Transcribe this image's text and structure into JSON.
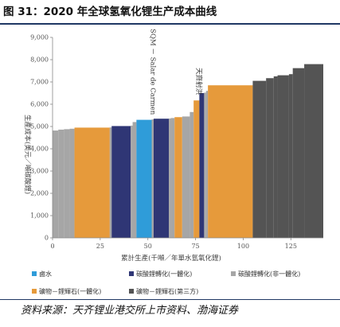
{
  "header": {
    "title": "图 31：2020 年全球氢氧化锂生产成本曲线"
  },
  "footer": {
    "source": "资料来源：天齐锂业港交所上市资料、渤海证券"
  },
  "colors": {
    "grey": "#a6a6a6",
    "orange": "#e69a3b",
    "navy": "#2f3675",
    "cyan": "#2f9cd9",
    "dark": "#545454",
    "title_rule": "#1f3864"
  },
  "chart_data": {
    "type": "bar",
    "subtype": "cost-curve",
    "xlabel": "累計生產(千噸／年單水氫氧化鋰)",
    "ylabel": "生產成本(美元／噸碳酸鋰)",
    "xlim": [
      0,
      142
    ],
    "ylim": [
      0,
      9000
    ],
    "x_ticks": [
      0,
      25,
      50,
      75,
      100,
      125
    ],
    "y_ticks": [
      0,
      1000,
      2000,
      3000,
      4000,
      5000,
      6000,
      7000,
      8000,
      9000
    ],
    "y_tick_labels": [
      "0",
      "1,000",
      "2,000",
      "3,000",
      "4,000",
      "5,000",
      "6,000",
      "7,000",
      "8,000",
      "9,000"
    ],
    "grid": false,
    "legend_position": "bottom",
    "legend": [
      {
        "label": "鹵水",
        "color": "#2f9cd9"
      },
      {
        "label": "碳酸鋰轉化(一體化)",
        "color": "#2f3675"
      },
      {
        "label": "碳酸鋰轉化(非一體化)",
        "color": "#a6a6a6"
      },
      {
        "label": "礦物－鋰輝石(一體化)",
        "color": "#e69a3b"
      },
      {
        "label": "礦物－鋰輝石(第三方)",
        "color": "#545454"
      }
    ],
    "annotations": [
      {
        "text": "SQM － Salar de Carmen",
        "x": 51.5,
        "y": 5450
      },
      {
        "text": "天齊射洪",
        "x": 75.5,
        "y": 6350
      }
    ],
    "segments": [
      {
        "x0": 0,
        "x1": 3,
        "cost": 4820,
        "color": "grey"
      },
      {
        "x0": 3,
        "x1": 6,
        "cost": 4860,
        "color": "grey"
      },
      {
        "x0": 6,
        "x1": 9,
        "cost": 4880,
        "color": "grey"
      },
      {
        "x0": 9,
        "x1": 11.5,
        "cost": 4900,
        "color": "grey"
      },
      {
        "x0": 11.5,
        "x1": 30,
        "cost": 4950,
        "color": "orange"
      },
      {
        "x0": 30,
        "x1": 31,
        "cost": 4960,
        "color": "grey"
      },
      {
        "x0": 31,
        "x1": 41,
        "cost": 5020,
        "color": "navy"
      },
      {
        "x0": 41,
        "x1": 42,
        "cost": 5040,
        "color": "grey"
      },
      {
        "x0": 42,
        "x1": 44,
        "cost": 5200,
        "color": "grey"
      },
      {
        "x0": 44,
        "x1": 52,
        "cost": 5300,
        "color": "cyan"
      },
      {
        "x0": 52,
        "x1": 53,
        "cost": 5320,
        "color": "grey"
      },
      {
        "x0": 53,
        "x1": 61,
        "cost": 5350,
        "color": "navy"
      },
      {
        "x0": 61,
        "x1": 62,
        "cost": 5360,
        "color": "grey"
      },
      {
        "x0": 62,
        "x1": 64,
        "cost": 5380,
        "color": "grey"
      },
      {
        "x0": 64,
        "x1": 68,
        "cost": 5420,
        "color": "orange"
      },
      {
        "x0": 68,
        "x1": 72,
        "cost": 5450,
        "color": "grey"
      },
      {
        "x0": 72,
        "x1": 74,
        "cost": 5650,
        "color": "grey"
      },
      {
        "x0": 74,
        "x1": 77,
        "cost": 6170,
        "color": "orange"
      },
      {
        "x0": 77,
        "x1": 79.5,
        "cost": 6500,
        "color": "navy"
      },
      {
        "x0": 79.5,
        "x1": 80.5,
        "cost": 6520,
        "color": "grey"
      },
      {
        "x0": 80.5,
        "x1": 81.5,
        "cost": 6600,
        "color": "grey"
      },
      {
        "x0": 81.5,
        "x1": 105,
        "cost": 6850,
        "color": "orange"
      },
      {
        "x0": 105,
        "x1": 112,
        "cost": 7050,
        "color": "dark"
      },
      {
        "x0": 112,
        "x1": 116,
        "cost": 7170,
        "color": "dark"
      },
      {
        "x0": 116,
        "x1": 118,
        "cost": 7250,
        "color": "dark"
      },
      {
        "x0": 118,
        "x1": 124,
        "cost": 7300,
        "color": "dark"
      },
      {
        "x0": 124,
        "x1": 126,
        "cost": 7350,
        "color": "dark"
      },
      {
        "x0": 126,
        "x1": 132,
        "cost": 7620,
        "color": "dark"
      },
      {
        "x0": 132,
        "x1": 142,
        "cost": 7800,
        "color": "dark"
      }
    ]
  }
}
